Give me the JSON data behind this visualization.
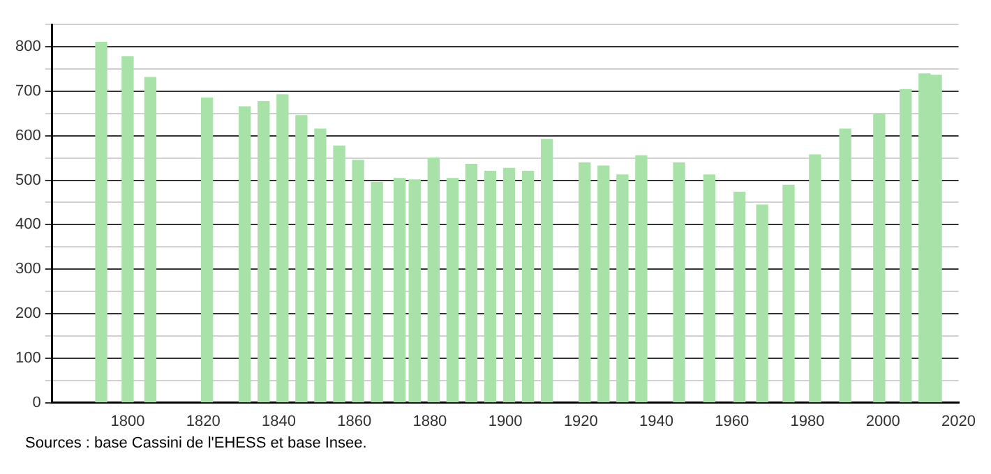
{
  "chart_data": {
    "type": "bar",
    "x": [
      1793,
      1800,
      1806,
      1821,
      1831,
      1836,
      1841,
      1846,
      1851,
      1856,
      1861,
      1866,
      1872,
      1876,
      1881,
      1886,
      1891,
      1896,
      1901,
      1906,
      1911,
      1921,
      1926,
      1931,
      1936,
      1946,
      1954,
      1962,
      1968,
      1975,
      1982,
      1990,
      1999,
      2006,
      2011,
      2014
    ],
    "values": [
      810,
      778,
      731,
      685,
      665,
      677,
      692,
      645,
      615,
      577,
      545,
      495,
      504,
      501,
      550,
      504,
      536,
      520,
      527,
      520,
      592,
      539,
      532,
      512,
      555,
      539,
      512,
      473,
      444,
      489,
      557,
      615,
      649,
      704,
      739,
      736
    ],
    "color": "#a8e2a8",
    "xlim": [
      1780,
      2020
    ],
    "xticks": [
      1800,
      1820,
      1840,
      1860,
      1880,
      1900,
      1920,
      1940,
      1960,
      1980,
      2000,
      2020
    ],
    "ylim": [
      0,
      850
    ],
    "yticks": [
      0,
      {
        "value": 50,
        "label": null
      },
      100,
      {
        "value": 150,
        "label": null
      },
      200,
      {
        "value": 250,
        "label": null
      },
      300,
      {
        "value": 350,
        "label": null
      },
      400,
      {
        "value": 450,
        "label": null
      },
      500,
      {
        "value": 550,
        "label": null
      },
      600,
      {
        "value": 650,
        "label": null
      },
      700,
      {
        "value": 750,
        "label": null
      },
      800,
      {
        "value": 850,
        "label": null
      }
    ],
    "grid": "y",
    "annotations": [
      "Sources : base Cassini de l'EHESS et base Insee."
    ]
  }
}
